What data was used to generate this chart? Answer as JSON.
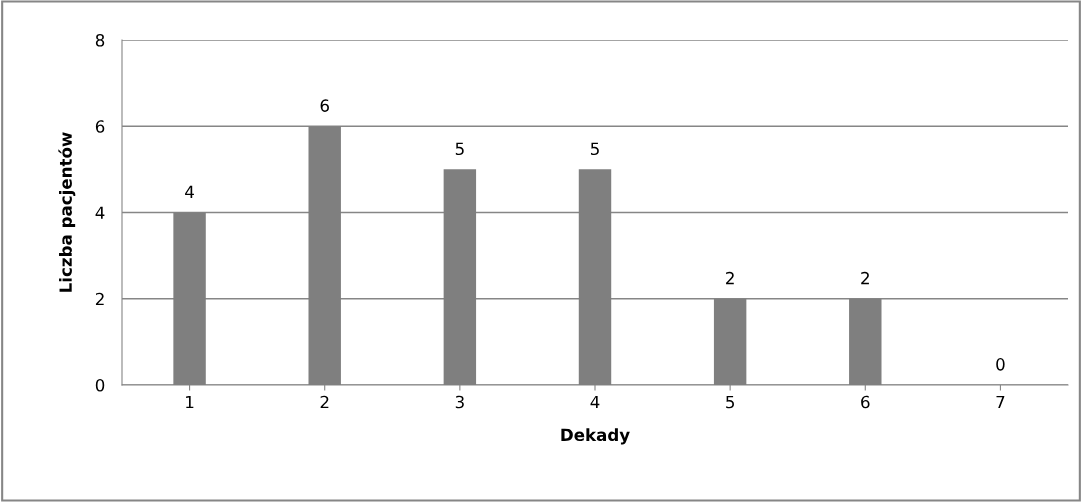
{
  "chart_data": {
    "type": "bar",
    "xlabel": "Dekady",
    "ylabel": "Liczba pacjentów",
    "categories": [
      "1",
      "2",
      "3",
      "4",
      "5",
      "6",
      "7"
    ],
    "values": [
      4,
      6,
      5,
      5,
      2,
      2,
      0
    ],
    "color": "#7f7f7f",
    "ylim": [
      0,
      8
    ],
    "yticks": [
      0,
      2,
      4,
      6,
      8
    ],
    "grid": "y",
    "data_labels": true
  }
}
